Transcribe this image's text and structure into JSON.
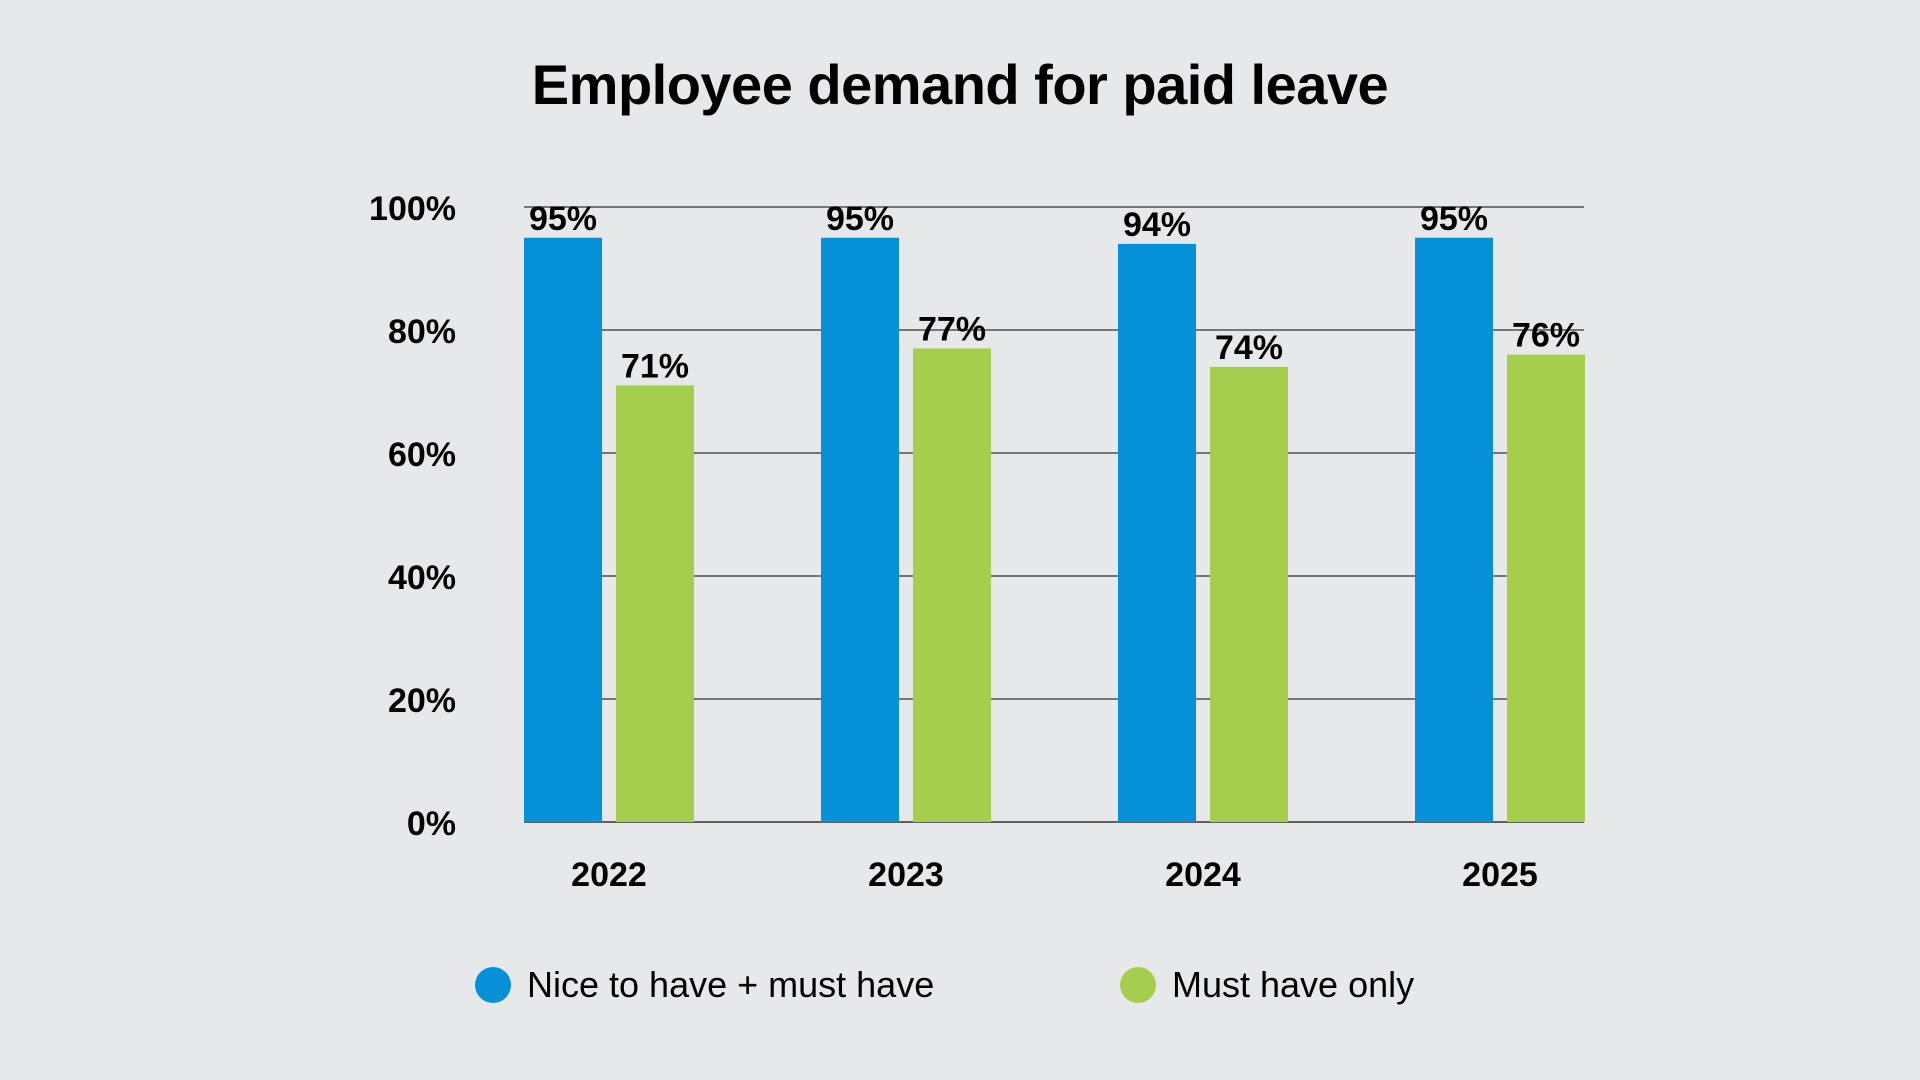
{
  "chart_data": {
    "type": "bar",
    "title": "Employee demand for paid leave",
    "xlabel": "",
    "ylabel": "",
    "categories": [
      "2022",
      "2023",
      "2024",
      "2025"
    ],
    "series": [
      {
        "name": "Nice to have + must have",
        "values": [
          95,
          95,
          94,
          95
        ],
        "labels": [
          "95%",
          "95%",
          "94%",
          "95%"
        ],
        "color": "#0590d8"
      },
      {
        "name": "Must have only",
        "values": [
          71,
          77,
          74,
          76
        ],
        "labels": [
          "71%",
          "77%",
          "74%",
          "76%"
        ],
        "color": "#a5ce4f"
      }
    ],
    "ylim": [
      0,
      100
    ],
    "yticks": [
      0,
      20,
      40,
      60,
      80,
      100
    ],
    "ytick_labels": [
      "0%",
      "20%",
      "40%",
      "60%",
      "80%",
      "100%"
    ],
    "grid": true,
    "legend": "bottom"
  },
  "colors": {
    "background": "#e7e8ea",
    "gridline": "#333333",
    "text": "#000000"
  }
}
